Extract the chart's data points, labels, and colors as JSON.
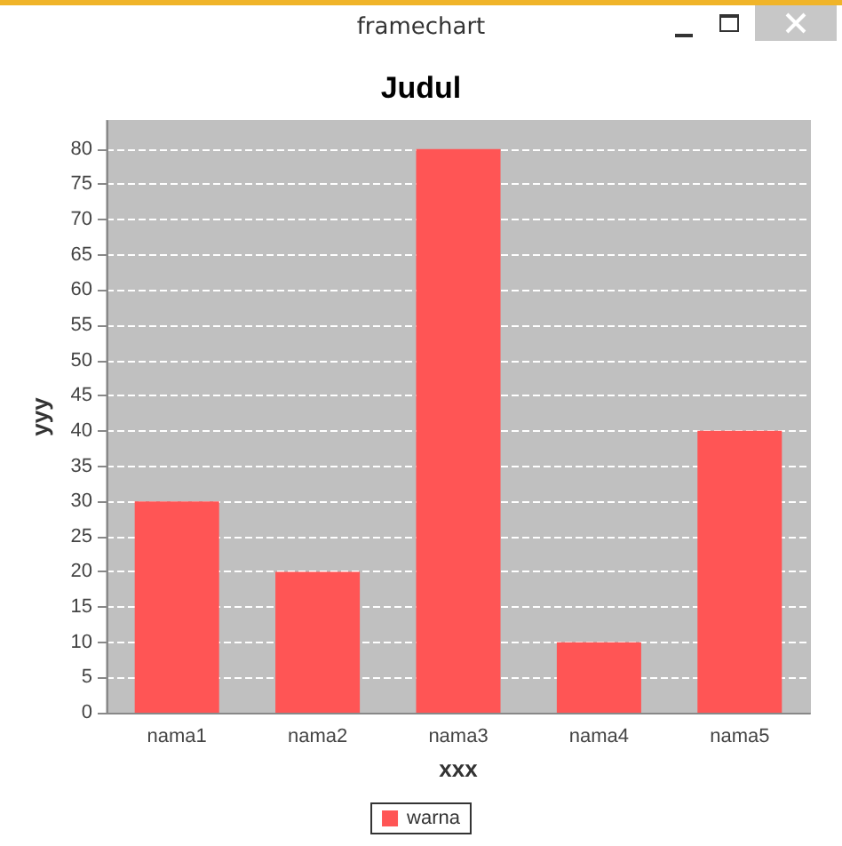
{
  "chart_data": {
    "type": "bar",
    "title": "Judul",
    "xlabel": "xxx",
    "ylabel": "yyy",
    "annotations": [
      "framechart"
    ],
    "categories": [
      "nama1",
      "nama2",
      "nama3",
      "nama4",
      "nama5"
    ],
    "series": [
      {
        "name": "warna",
        "color": "#ff5555",
        "values": [
          30,
          20,
          80,
          10,
          40
        ]
      }
    ],
    "ylim": [
      0,
      84
    ],
    "yticks": [
      0,
      5,
      10,
      15,
      20,
      25,
      30,
      35,
      40,
      45,
      50,
      55,
      60,
      65,
      70,
      75,
      80
    ],
    "grid": "y",
    "legend": "bottom"
  }
}
